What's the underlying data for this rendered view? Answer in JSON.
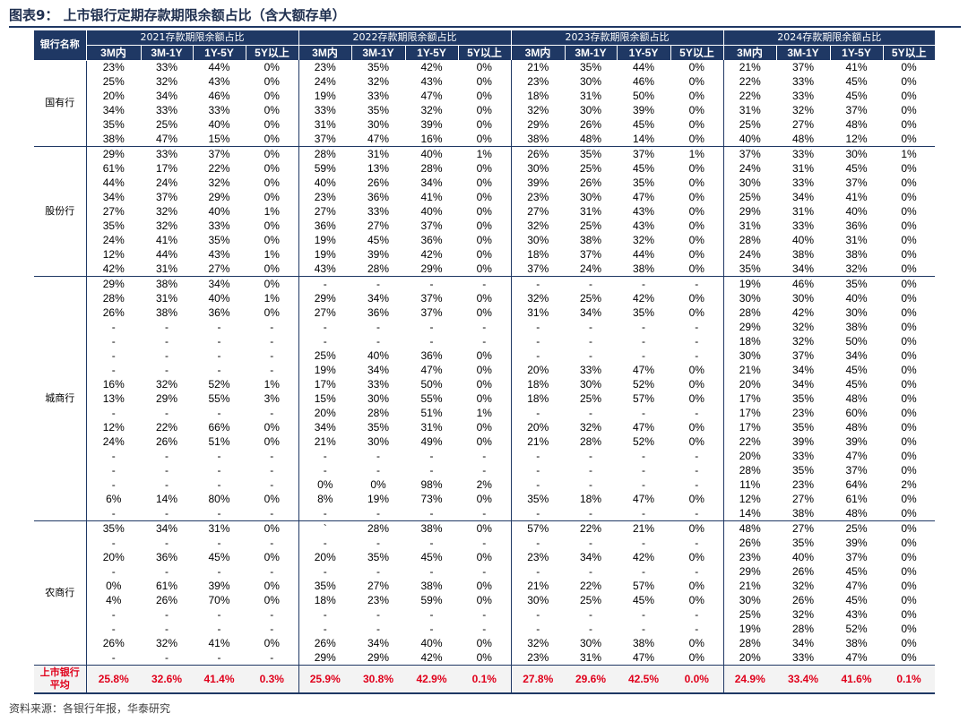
{
  "title": "图表9： 上市银行定期存款期限余额占比（含大额存单）",
  "header": {
    "bank": "银行名称",
    "years": [
      "2021存款期限余额占比",
      "2022存款期限余额占比",
      "2023存款期限余额占比",
      "2024存款期限余额占比"
    ],
    "sub": [
      "3M内",
      "3M-1Y",
      "1Y-5Y",
      "5Y以上"
    ]
  },
  "groups": [
    {
      "name": "国有行",
      "rows": [
        [
          "23%",
          "33%",
          "44%",
          "0%",
          "23%",
          "35%",
          "42%",
          "0%",
          "21%",
          "35%",
          "44%",
          "0%",
          "21%",
          "37%",
          "41%",
          "0%"
        ],
        [
          "25%",
          "32%",
          "43%",
          "0%",
          "24%",
          "32%",
          "43%",
          "0%",
          "23%",
          "30%",
          "46%",
          "0%",
          "22%",
          "33%",
          "45%",
          "0%"
        ],
        [
          "20%",
          "34%",
          "46%",
          "0%",
          "19%",
          "33%",
          "47%",
          "0%",
          "18%",
          "31%",
          "50%",
          "0%",
          "22%",
          "33%",
          "45%",
          "0%"
        ],
        [
          "34%",
          "33%",
          "33%",
          "0%",
          "33%",
          "35%",
          "32%",
          "0%",
          "32%",
          "30%",
          "39%",
          "0%",
          "31%",
          "32%",
          "37%",
          "0%"
        ],
        [
          "35%",
          "25%",
          "40%",
          "0%",
          "31%",
          "30%",
          "39%",
          "0%",
          "29%",
          "26%",
          "45%",
          "0%",
          "25%",
          "27%",
          "48%",
          "0%"
        ],
        [
          "38%",
          "47%",
          "15%",
          "0%",
          "37%",
          "47%",
          "16%",
          "0%",
          "38%",
          "48%",
          "14%",
          "0%",
          "40%",
          "48%",
          "12%",
          "0%"
        ]
      ]
    },
    {
      "name": "股份行",
      "rows": [
        [
          "29%",
          "33%",
          "37%",
          "0%",
          "28%",
          "31%",
          "40%",
          "1%",
          "26%",
          "35%",
          "37%",
          "1%",
          "37%",
          "33%",
          "30%",
          "1%"
        ],
        [
          "61%",
          "17%",
          "22%",
          "0%",
          "59%",
          "13%",
          "28%",
          "0%",
          "30%",
          "25%",
          "45%",
          "0%",
          "24%",
          "31%",
          "45%",
          "0%"
        ],
        [
          "44%",
          "24%",
          "32%",
          "0%",
          "40%",
          "26%",
          "34%",
          "0%",
          "39%",
          "26%",
          "35%",
          "0%",
          "30%",
          "33%",
          "37%",
          "0%"
        ],
        [
          "34%",
          "37%",
          "29%",
          "0%",
          "23%",
          "36%",
          "41%",
          "0%",
          "23%",
          "30%",
          "47%",
          "0%",
          "25%",
          "34%",
          "41%",
          "0%"
        ],
        [
          "27%",
          "32%",
          "40%",
          "1%",
          "27%",
          "33%",
          "40%",
          "0%",
          "27%",
          "31%",
          "43%",
          "0%",
          "29%",
          "31%",
          "40%",
          "0%"
        ],
        [
          "35%",
          "32%",
          "33%",
          "0%",
          "36%",
          "27%",
          "37%",
          "0%",
          "32%",
          "25%",
          "43%",
          "0%",
          "31%",
          "33%",
          "36%",
          "0%"
        ],
        [
          "24%",
          "41%",
          "35%",
          "0%",
          "19%",
          "45%",
          "36%",
          "0%",
          "30%",
          "38%",
          "32%",
          "0%",
          "28%",
          "40%",
          "31%",
          "0%"
        ],
        [
          "12%",
          "44%",
          "43%",
          "1%",
          "19%",
          "39%",
          "42%",
          "0%",
          "18%",
          "37%",
          "44%",
          "0%",
          "24%",
          "38%",
          "38%",
          "0%"
        ],
        [
          "42%",
          "31%",
          "27%",
          "0%",
          "43%",
          "28%",
          "29%",
          "0%",
          "37%",
          "24%",
          "38%",
          "0%",
          "35%",
          "34%",
          "32%",
          "0%"
        ]
      ]
    },
    {
      "name": "城商行",
      "rows": [
        [
          "29%",
          "38%",
          "34%",
          "0%",
          "-",
          "-",
          "-",
          "-",
          "-",
          "-",
          "-",
          "-",
          "19%",
          "46%",
          "35%",
          "0%"
        ],
        [
          "28%",
          "31%",
          "40%",
          "1%",
          "29%",
          "34%",
          "37%",
          "0%",
          "32%",
          "25%",
          "42%",
          "0%",
          "30%",
          "30%",
          "40%",
          "0%"
        ],
        [
          "26%",
          "38%",
          "36%",
          "0%",
          "27%",
          "36%",
          "37%",
          "0%",
          "31%",
          "34%",
          "35%",
          "0%",
          "28%",
          "42%",
          "30%",
          "0%"
        ],
        [
          "-",
          "-",
          "-",
          "-",
          "-",
          "-",
          "-",
          "-",
          "-",
          "-",
          "-",
          "-",
          "29%",
          "32%",
          "38%",
          "0%"
        ],
        [
          "-",
          "-",
          "-",
          "-",
          "-",
          "-",
          "-",
          "-",
          "-",
          "-",
          "-",
          "-",
          "18%",
          "32%",
          "50%",
          "0%"
        ],
        [
          "-",
          "-",
          "-",
          "-",
          "25%",
          "40%",
          "36%",
          "0%",
          "-",
          "-",
          "-",
          "-",
          "30%",
          "37%",
          "34%",
          "0%"
        ],
        [
          "-",
          "-",
          "-",
          "-",
          "19%",
          "34%",
          "47%",
          "0%",
          "20%",
          "33%",
          "47%",
          "0%",
          "21%",
          "34%",
          "45%",
          "0%"
        ],
        [
          "16%",
          "32%",
          "52%",
          "1%",
          "17%",
          "33%",
          "50%",
          "0%",
          "18%",
          "30%",
          "52%",
          "0%",
          "20%",
          "34%",
          "45%",
          "0%"
        ],
        [
          "13%",
          "29%",
          "55%",
          "3%",
          "15%",
          "30%",
          "55%",
          "0%",
          "18%",
          "25%",
          "57%",
          "0%",
          "17%",
          "35%",
          "48%",
          "0%"
        ],
        [
          "-",
          "-",
          "-",
          "-",
          "20%",
          "28%",
          "51%",
          "1%",
          "-",
          "-",
          "-",
          "-",
          "17%",
          "23%",
          "60%",
          "0%"
        ],
        [
          "12%",
          "22%",
          "66%",
          "0%",
          "34%",
          "35%",
          "31%",
          "0%",
          "20%",
          "32%",
          "47%",
          "0%",
          "17%",
          "35%",
          "48%",
          "0%"
        ],
        [
          "24%",
          "26%",
          "51%",
          "0%",
          "21%",
          "30%",
          "49%",
          "0%",
          "21%",
          "28%",
          "52%",
          "0%",
          "22%",
          "39%",
          "39%",
          "0%"
        ],
        [
          "-",
          "-",
          "-",
          "-",
          "-",
          "-",
          "-",
          "-",
          "-",
          "-",
          "-",
          "-",
          "20%",
          "33%",
          "47%",
          "0%"
        ],
        [
          "-",
          "-",
          "-",
          "-",
          "-",
          "-",
          "-",
          "-",
          "-",
          "-",
          "-",
          "-",
          "28%",
          "35%",
          "37%",
          "0%"
        ],
        [
          "-",
          "-",
          "-",
          "-",
          "0%",
          "0%",
          "98%",
          "2%",
          "-",
          "-",
          "-",
          "-",
          "11%",
          "23%",
          "64%",
          "2%"
        ],
        [
          "6%",
          "14%",
          "80%",
          "0%",
          "8%",
          "19%",
          "73%",
          "0%",
          "35%",
          "18%",
          "47%",
          "0%",
          "12%",
          "27%",
          "61%",
          "0%"
        ],
        [
          "-",
          "-",
          "-",
          "-",
          "-",
          "-",
          "-",
          "-",
          "-",
          "-",
          "-",
          "-",
          "14%",
          "38%",
          "48%",
          "0%"
        ]
      ]
    },
    {
      "name": "农商行",
      "rows": [
        [
          "35%",
          "34%",
          "31%",
          "0%",
          "`",
          "28%",
          "38%",
          "0%",
          "57%",
          "22%",
          "21%",
          "0%",
          "48%",
          "27%",
          "25%",
          "0%"
        ],
        [
          "-",
          "-",
          "-",
          "-",
          "-",
          "-",
          "-",
          "-",
          "-",
          "-",
          "-",
          "-",
          "26%",
          "35%",
          "39%",
          "0%"
        ],
        [
          "20%",
          "36%",
          "45%",
          "0%",
          "20%",
          "35%",
          "45%",
          "0%",
          "23%",
          "34%",
          "42%",
          "0%",
          "23%",
          "40%",
          "37%",
          "0%"
        ],
        [
          "-",
          "-",
          "-",
          "-",
          "-",
          "-",
          "-",
          "-",
          "-",
          "-",
          "-",
          "-",
          "29%",
          "26%",
          "45%",
          "0%"
        ],
        [
          "0%",
          "61%",
          "39%",
          "0%",
          "35%",
          "27%",
          "38%",
          "0%",
          "21%",
          "22%",
          "57%",
          "0%",
          "21%",
          "32%",
          "47%",
          "0%"
        ],
        [
          "4%",
          "26%",
          "70%",
          "0%",
          "18%",
          "23%",
          "59%",
          "0%",
          "30%",
          "25%",
          "45%",
          "0%",
          "30%",
          "26%",
          "45%",
          "0%"
        ],
        [
          "-",
          "-",
          "-",
          "-",
          "-",
          "-",
          "-",
          "-",
          "-",
          "-",
          "-",
          "-",
          "25%",
          "32%",
          "43%",
          "0%"
        ],
        [
          "-",
          "-",
          "-",
          "-",
          "-",
          "-",
          "-",
          "-",
          "-",
          "-",
          "-",
          "-",
          "19%",
          "28%",
          "52%",
          "0%"
        ],
        [
          "26%",
          "32%",
          "41%",
          "0%",
          "26%",
          "34%",
          "40%",
          "0%",
          "32%",
          "30%",
          "38%",
          "0%",
          "28%",
          "34%",
          "38%",
          "0%"
        ],
        [
          "-",
          "-",
          "-",
          "-",
          "29%",
          "29%",
          "42%",
          "0%",
          "23%",
          "31%",
          "47%",
          "0%",
          "20%",
          "33%",
          "47%",
          "0%"
        ]
      ]
    }
  ],
  "average": {
    "label_line1": "上市银行",
    "label_line2": "平均",
    "values": [
      "25.8%",
      "32.6%",
      "41.4%",
      "0.3%",
      "25.9%",
      "30.8%",
      "42.9%",
      "0.1%",
      "27.8%",
      "29.6%",
      "42.5%",
      "0.0%",
      "24.9%",
      "33.4%",
      "41.6%",
      "0.1%"
    ]
  },
  "source": "资料来源：各银行年报，华泰研究"
}
